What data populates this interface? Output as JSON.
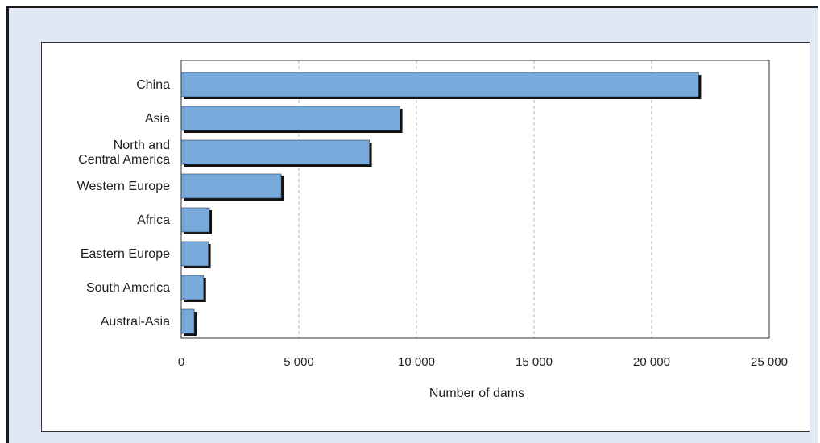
{
  "chart_data": {
    "type": "bar",
    "orientation": "horizontal",
    "categories": [
      "China",
      "Asia",
      "North and Central America",
      "Western Europe",
      "Africa",
      "Eastern Europe",
      "South America",
      "Austral-Asia"
    ],
    "category_label_lines": [
      [
        "China"
      ],
      [
        "Asia"
      ],
      [
        "North and",
        "Central America"
      ],
      [
        "Western Europe"
      ],
      [
        "Africa"
      ],
      [
        "Eastern Europe"
      ],
      [
        "South America"
      ],
      [
        "Austral-Asia"
      ]
    ],
    "values": [
      22000,
      9300,
      8000,
      4250,
      1200,
      1150,
      950,
      550
    ],
    "title": "",
    "xlabel": "Number of dams",
    "ylabel": "",
    "xlim": [
      0,
      25000
    ],
    "ticks": [
      0,
      5000,
      10000,
      15000,
      20000,
      25000
    ],
    "tick_labels": [
      "0",
      "5 000",
      "10 000",
      "15 000",
      "20 000",
      "25 000"
    ],
    "grid": "vertical-dashed",
    "legend": "none",
    "colors": {
      "bar_fill": "#78aadc",
      "bar_shadow": "#111111",
      "gridline": "#9dbfd9",
      "frame_background": "#dfe8f4",
      "axis": "#333333"
    }
  }
}
